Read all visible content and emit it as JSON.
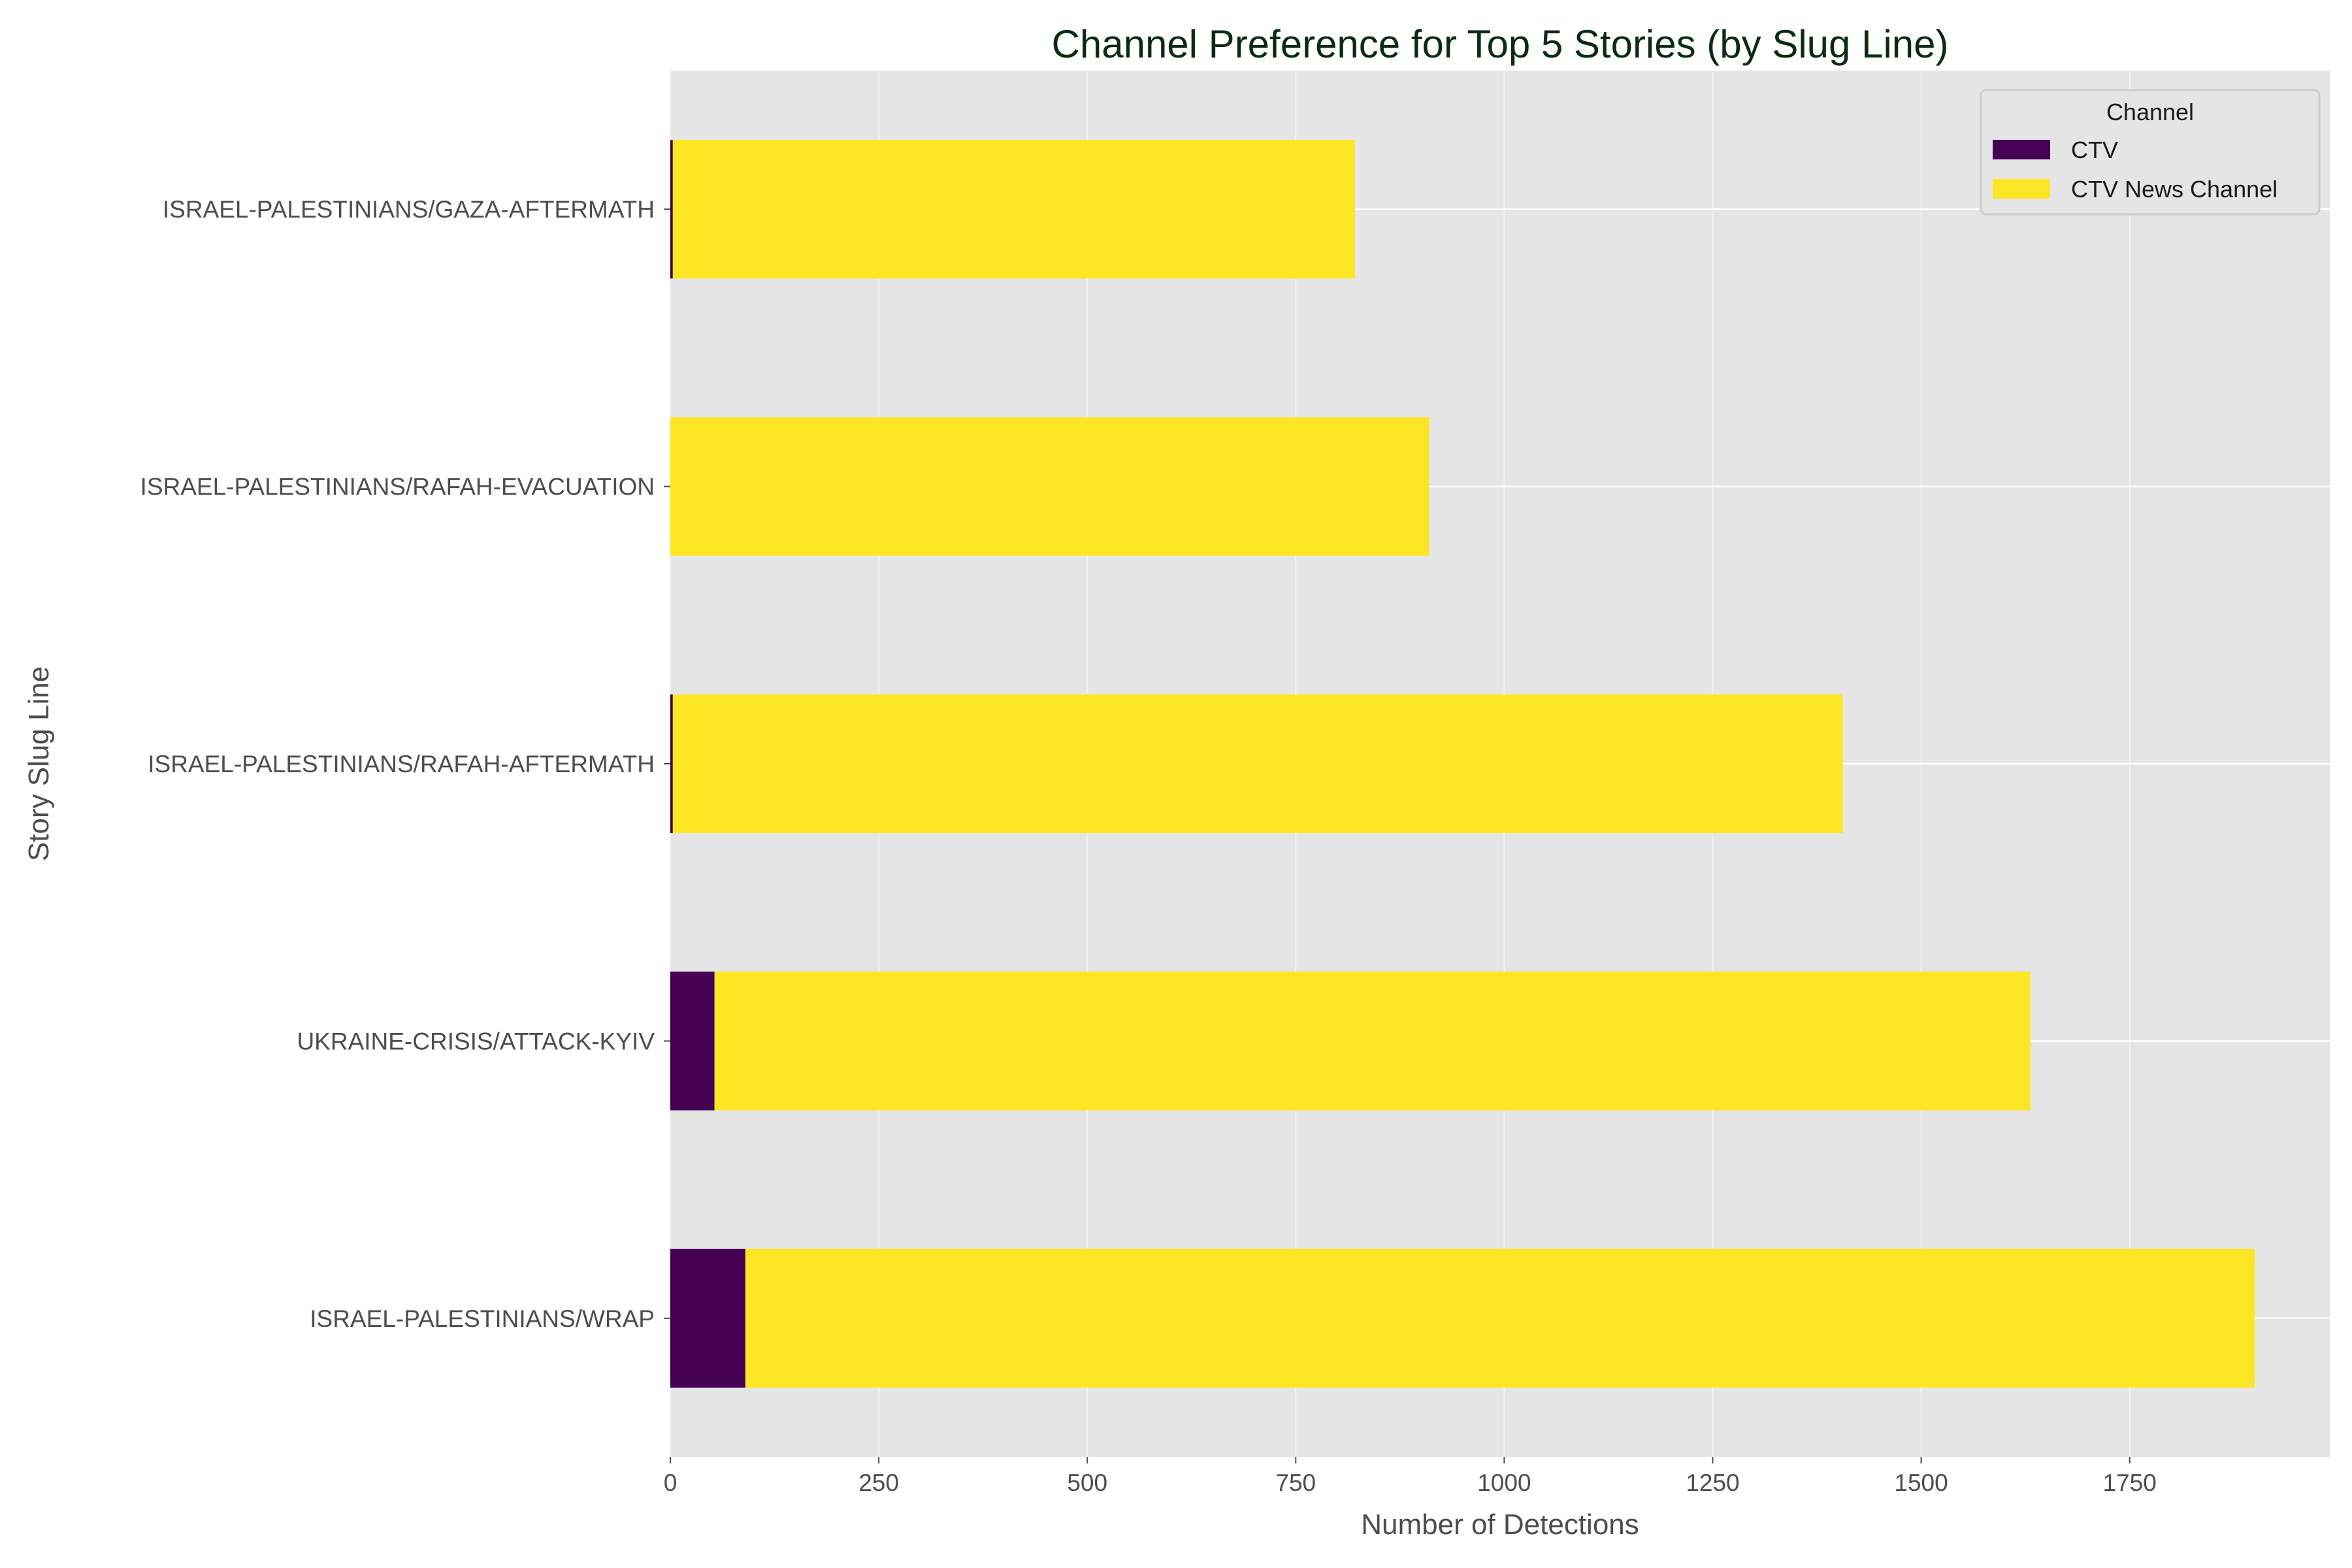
{
  "chart_data": {
    "type": "bar",
    "orientation": "horizontal",
    "stacked": true,
    "title": "Channel Preference for Top 5 Stories (by Slug Line)",
    "xlabel": "Number of Detections",
    "ylabel": "Story Slug Line",
    "categories": [
      "ISRAEL-PALESTINIANS/WRAP",
      "UKRAINE-CRISIS/ATTACK-KYIV",
      "ISRAEL-PALESTINIANS/RAFAH-AFTERMATH",
      "ISRAEL-PALESTINIANS/RAFAH-EVACUATION",
      "ISRAEL-PALESTINIANS/GAZA-AFTERMATH"
    ],
    "series": [
      {
        "name": "CTV",
        "color": "#440154",
        "values": [
          90,
          53,
          3,
          0,
          3
        ]
      },
      {
        "name": "CTV News Channel",
        "color": "#fde725",
        "values": [
          1810,
          1578,
          1403,
          910,
          818
        ]
      }
    ],
    "xlim": [
      0,
      1990
    ],
    "xticks": [
      0,
      250,
      500,
      750,
      1000,
      1250,
      1500,
      1750
    ],
    "grid": true,
    "legend": {
      "title": "Channel",
      "position": "top-right"
    }
  }
}
